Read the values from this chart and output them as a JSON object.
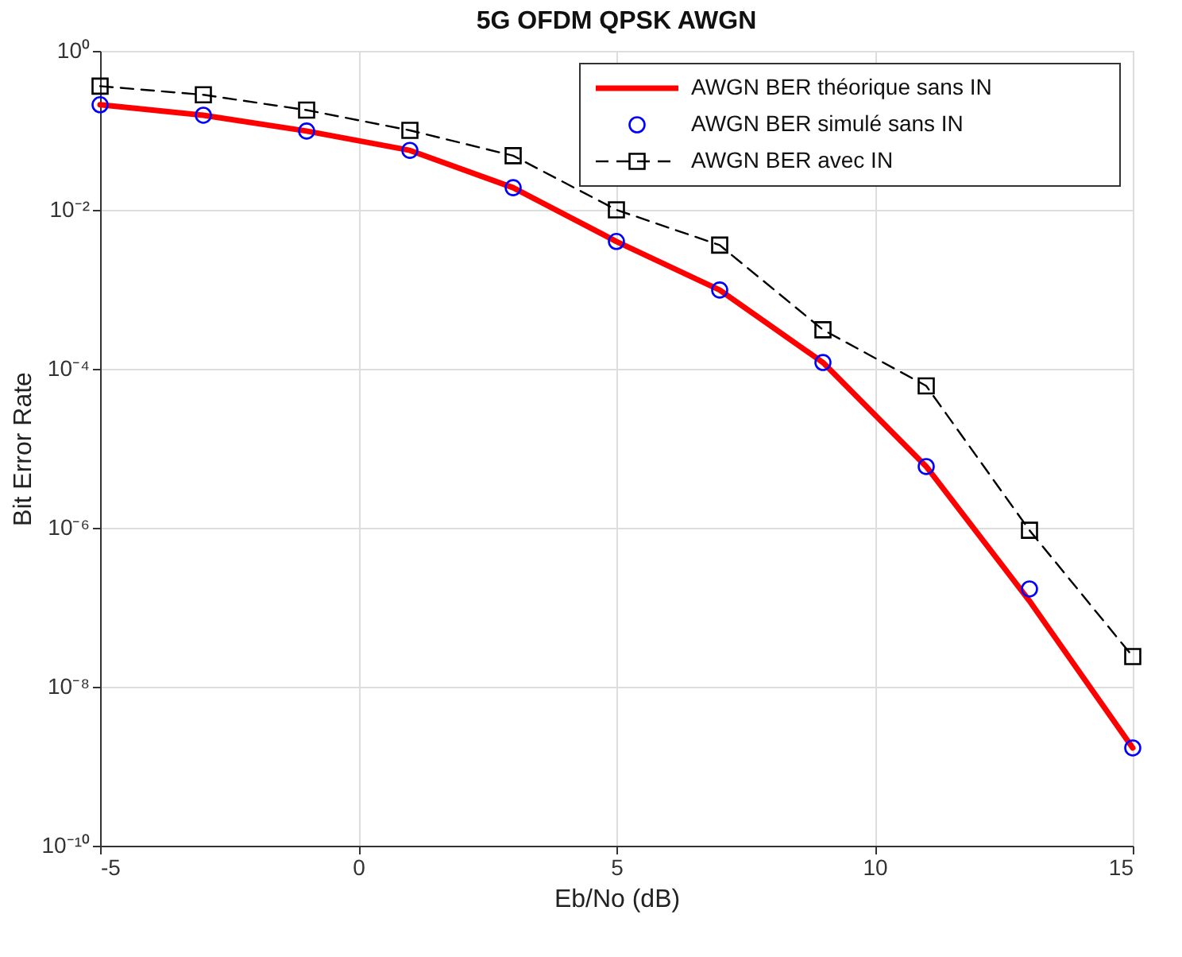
{
  "chart_data": {
    "type": "line",
    "title": "5G OFDM QPSK AWGN",
    "xlabel": "Eb/No (dB)",
    "ylabel": "Bit Error Rate",
    "x": [
      -5,
      -3,
      -1,
      1,
      3,
      5,
      7,
      9,
      11,
      13,
      15
    ],
    "series": [
      {
        "name": "AWGN BER théorique sans IN",
        "type": "line",
        "color": "#ff0000",
        "marker": "none",
        "line_style": "solid",
        "values": [
          0.21,
          0.155,
          0.098,
          0.056,
          0.019,
          0.004,
          0.00098,
          0.00012,
          5.9e-06,
          1.2e-07,
          1.7e-09
        ]
      },
      {
        "name": "AWGN BER simulé  sans IN",
        "type": "scatter",
        "color": "#0000ff",
        "marker": "circle",
        "values": [
          0.21,
          0.155,
          0.098,
          0.056,
          0.019,
          0.004,
          0.00098,
          0.00012,
          5.9e-06,
          1.7e-07,
          1.7e-09
        ]
      },
      {
        "name": "AWGN BER avec IN",
        "type": "line",
        "color": "#000000",
        "marker": "square",
        "line_style": "dashed",
        "values": [
          0.36,
          0.28,
          0.18,
          0.1,
          0.048,
          0.01,
          0.0036,
          0.00031,
          6.1e-05,
          9.3e-07,
          2.4e-08
        ]
      }
    ],
    "log": "y",
    "xlim": [
      -5,
      15
    ],
    "xticks": [
      -5,
      0,
      5,
      10,
      15
    ],
    "ylim": [
      1e-10,
      1
    ],
    "yticks": [
      {
        "value": 1e-10,
        "label": "10⁻¹⁰"
      },
      {
        "value": 1e-08,
        "label": "10⁻⁸"
      },
      {
        "value": 1e-06,
        "label": "10⁻⁶"
      },
      {
        "value": 0.0001,
        "label": "10⁻⁴"
      },
      {
        "value": 0.01,
        "label": "10⁻²"
      },
      {
        "value": 1,
        "label": "10⁰"
      }
    ],
    "grid": true,
    "legend": "top right"
  }
}
